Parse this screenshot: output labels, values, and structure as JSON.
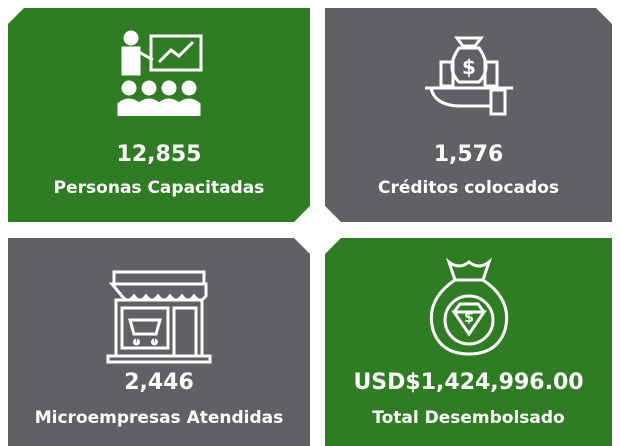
{
  "tiles": [
    {
      "value": "12,855",
      "label": "Personas Capacitadas"
    },
    {
      "value": "1,576",
      "label": "Créditos colocados"
    },
    {
      "value": "2,446",
      "label": "Microempresas Atendidas"
    },
    {
      "value": "USD$1,424,996.00",
      "label": "Total Desembolsado"
    }
  ]
}
